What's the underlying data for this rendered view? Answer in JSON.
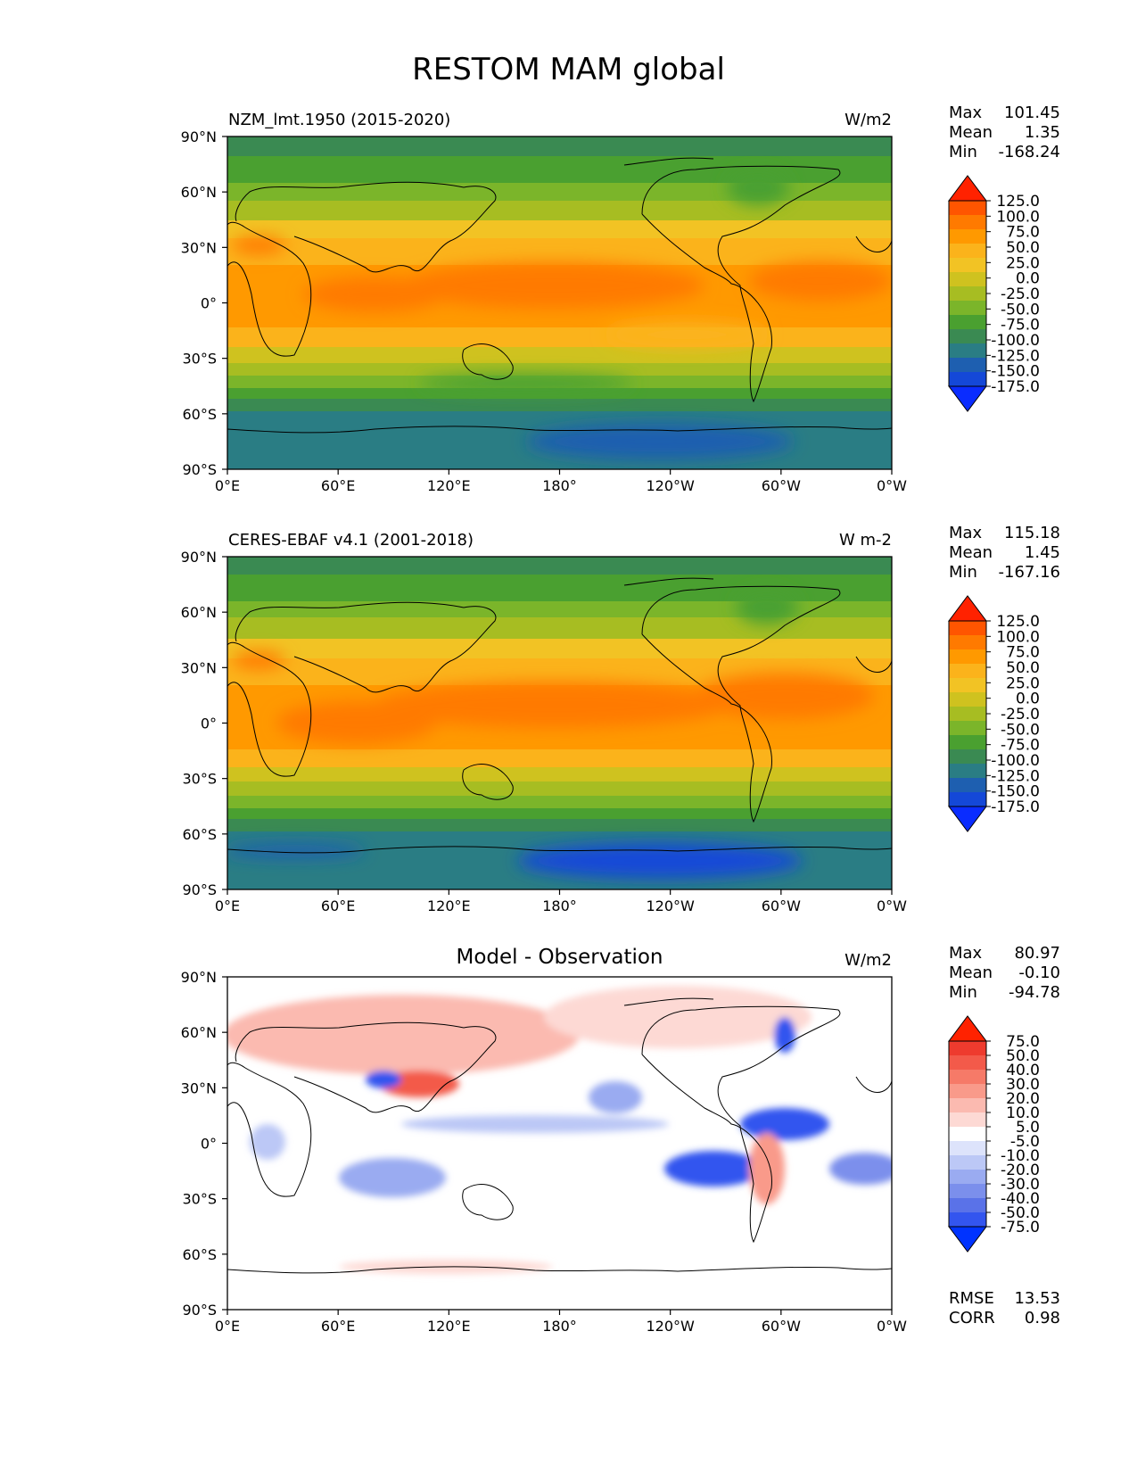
{
  "title": "RESTOM MAM global",
  "panels": [
    {
      "id": "model",
      "left_label": "NZM_lmt.1950 (2015-2020)",
      "center_label": "",
      "units": "W/m2",
      "stats": [
        {
          "label": "Max",
          "value": "101.45"
        },
        {
          "label": "Mean",
          "value": "1.35"
        },
        {
          "label": "Min",
          "value": "-168.24"
        }
      ]
    },
    {
      "id": "obs",
      "left_label": "CERES-EBAF v4.1 (2001-2018)",
      "center_label": "",
      "units": "W m-2",
      "stats": [
        {
          "label": "Max",
          "value": "115.18"
        },
        {
          "label": "Mean",
          "value": "1.45"
        },
        {
          "label": "Min",
          "value": "-167.16"
        }
      ]
    },
    {
      "id": "diff",
      "left_label": "",
      "center_label": "Model - Observation",
      "units": "W/m2",
      "stats": [
        {
          "label": "Max",
          "value": "80.97"
        },
        {
          "label": "Mean",
          "value": "-0.10"
        },
        {
          "label": "Min",
          "value": "-94.78"
        }
      ],
      "extra_stats": [
        {
          "label": "RMSE",
          "value": "13.53"
        },
        {
          "label": "CORR",
          "value": "0.98"
        }
      ]
    }
  ],
  "colormap_main": {
    "levels": [
      "125.0",
      "100.0",
      "75.0",
      "50.0",
      "25.0",
      "0.0",
      "-25.0",
      "-50.0",
      "-75.0",
      "-100.0",
      "-125.0",
      "-150.0",
      "-175.0"
    ],
    "colors": [
      "#ff2200",
      "#ff5500",
      "#ff7a00",
      "#ff9900",
      "#fbb31b",
      "#f2c324",
      "#cfc21f",
      "#a7bd22",
      "#7bb52a",
      "#4aa030",
      "#3a8a52",
      "#2a7d84",
      "#1e5fb0",
      "#1448d8",
      "#0a2cff"
    ]
  },
  "colormap_diff": {
    "levels": [
      "75.0",
      "50.0",
      "40.0",
      "30.0",
      "20.0",
      "10.0",
      "5.0",
      "-5.0",
      "-10.0",
      "-20.0",
      "-30.0",
      "-40.0",
      "-50.0",
      "-75.0"
    ],
    "colors": [
      "#ff2200",
      "#ee3b2e",
      "#f35a4a",
      "#f67a68",
      "#f99a8a",
      "#fbbab0",
      "#fdd9d4",
      "#ffffff",
      "#dde3fb",
      "#bcc8f6",
      "#9aabf1",
      "#7b8fec",
      "#5a72e8",
      "#3355ef",
      "#0033ff"
    ]
  },
  "chart_data": [
    {
      "type": "heatmap",
      "title": "NZM_lmt.1950 (2015-2020)",
      "units": "W/m2",
      "xlabel": "",
      "ylabel": "",
      "x_ticks": [
        "0°E",
        "60°E",
        "120°E",
        "180°",
        "120°W",
        "60°W",
        "0°W"
      ],
      "y_ticks": [
        "90°N",
        "60°N",
        "30°N",
        "0°",
        "30°S",
        "60°S",
        "90°S"
      ],
      "xlim": [
        0,
        360
      ],
      "ylim": [
        -90,
        90
      ],
      "lat_centers": [
        80,
        60,
        40,
        20,
        0,
        -20,
        -40,
        -60,
        -80
      ],
      "zonal_mean": [
        -80,
        -30,
        20,
        55,
        70,
        45,
        -40,
        -125,
        -160
      ],
      "max": 101.45,
      "mean": 1.35,
      "min": -168.24
    },
    {
      "type": "heatmap",
      "title": "CERES-EBAF v4.1 (2001-2018)",
      "units": "W m-2",
      "xlabel": "",
      "ylabel": "",
      "x_ticks": [
        "0°E",
        "60°E",
        "120°E",
        "180°",
        "120°W",
        "60°W",
        "0°W"
      ],
      "y_ticks": [
        "90°N",
        "60°N",
        "30°N",
        "0°",
        "30°S",
        "60°S",
        "90°S"
      ],
      "xlim": [
        0,
        360
      ],
      "ylim": [
        -90,
        90
      ],
      "lat_centers": [
        80,
        60,
        40,
        20,
        0,
        -20,
        -40,
        -60,
        -80
      ],
      "zonal_mean": [
        -85,
        -35,
        15,
        55,
        75,
        50,
        -35,
        -125,
        -160
      ],
      "max": 115.18,
      "mean": 1.45,
      "min": -167.16
    },
    {
      "type": "heatmap",
      "title": "Model - Observation",
      "units": "W/m2",
      "xlabel": "",
      "ylabel": "",
      "x_ticks": [
        "0°E",
        "60°E",
        "120°E",
        "180°",
        "120°W",
        "60°W",
        "0°W"
      ],
      "y_ticks": [
        "90°N",
        "60°N",
        "30°N",
        "0°",
        "30°S",
        "60°S",
        "90°S"
      ],
      "xlim": [
        0,
        360
      ],
      "ylim": [
        -90,
        90
      ],
      "max": 80.97,
      "mean": -0.1,
      "min": -94.78,
      "rmse": 13.53,
      "corr": 0.98
    }
  ]
}
